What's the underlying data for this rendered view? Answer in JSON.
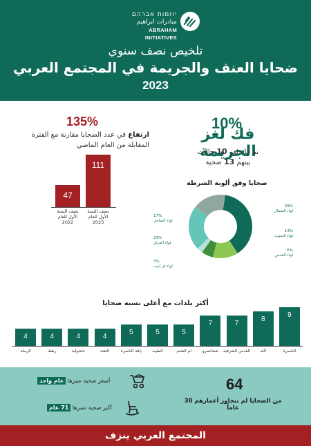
{
  "brand": {
    "hebrew": "יוזמות אברהם",
    "arabic": "مبادرات ابراهيم",
    "english": "ABRAHAM INITIATIVES"
  },
  "header": {
    "subtitle": "تلخيص نصف سنوي",
    "title": "ضحايا العنف والجريمة في المجتمع العربي",
    "year": "2023"
  },
  "stat_right": {
    "percent": "10%",
    "title": "فك لغز الجريمة",
    "text_1a": "تم فك لغز",
    "text_1b": "10",
    "text_1c": "حالات",
    "text_2a": "بينهم",
    "text_2b": "13",
    "text_2c": "ضحية"
  },
  "stat_left": {
    "percent": "135%",
    "bold_word": "ارتفاع",
    "text": "في عدد الضحايا مقارنة مع الفترة المقابلة من العام الماضي"
  },
  "chart_data": [
    {
      "type": "bar",
      "categories": [
        "نصف السنة الأول للعام 2022",
        "نصف السنة الأول للعام 2023"
      ],
      "values": [
        47,
        111
      ]
    },
    {
      "type": "pie",
      "title": "ضحايا وفق ألوية الشرطة",
      "slices": [
        {
          "label": "لواء الشمال",
          "value": 39,
          "value_label": "39%",
          "color": "#0f6b57"
        },
        {
          "label": "لواء الجنوب",
          "value": 13,
          "value_label": "13%",
          "color": "#8cc751"
        },
        {
          "label": "لواء القدس",
          "value": 6,
          "value_label": "6%",
          "color": "#3d8f3a"
        },
        {
          "label": "لواء تل أبيب",
          "value": 3,
          "value_label": "3%",
          "color": "#b8e3dc"
        },
        {
          "label": "لواء المركز",
          "value": 23,
          "value_label": "23%",
          "color": "#63c6b9"
        },
        {
          "label": "لواء الساحل",
          "value": 17,
          "value_label": "17%",
          "color": "#8fa89e"
        }
      ]
    },
    {
      "type": "bar",
      "title": "أكثر بلدات مع أعلى نسبة ضحايا",
      "categories": [
        "الناصرة",
        "اللد",
        "القدس الشرقية",
        "شفاعمرو",
        "ام الفحم",
        "الطيبة",
        "يافة الناصرة",
        "البعنة",
        "جلجولية",
        "رهط",
        "الرملة"
      ],
      "values": [
        9,
        8,
        7,
        7,
        5,
        5,
        5,
        4,
        4,
        4,
        4
      ]
    }
  ],
  "age": {
    "youngest_text": "أصغر ضحية عمرها",
    "youngest_value": "عام واحد",
    "oldest_text": "أكبر ضحية عمرها",
    "oldest_value": "71 عام",
    "count": "64",
    "count_text": "من الضحايا لم تتجاوز أعمارهم 30 عاماً"
  },
  "footer": "المجتمع العربي ينزف",
  "colors": {
    "green": "#0f6b57",
    "red": "#a32023",
    "teal_band": "#8bcac0"
  }
}
